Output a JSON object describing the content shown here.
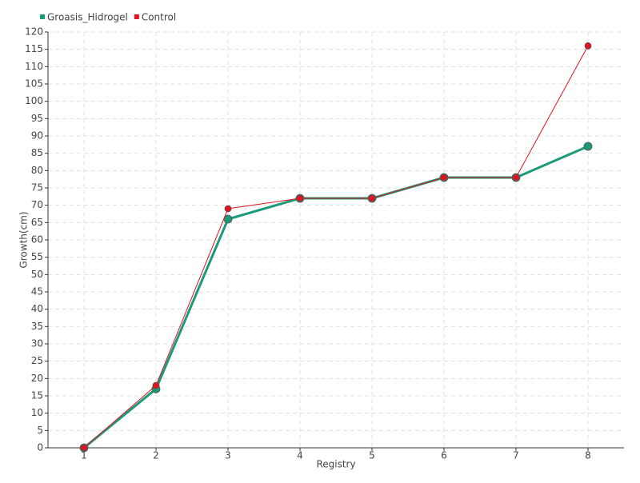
{
  "chart_data": {
    "type": "line",
    "x_label": "Registry",
    "y_label": "Growth(cm)",
    "x": [
      1,
      2,
      3,
      4,
      5,
      6,
      7,
      8
    ],
    "series": [
      {
        "name": "Groasis_Hidrogel",
        "color": "#1a9a7a",
        "values": [
          0,
          17,
          66,
          72,
          72,
          78,
          78,
          87
        ]
      },
      {
        "name": "Control",
        "color": "#e0141e",
        "values": [
          0,
          18,
          69,
          72,
          72,
          78,
          78,
          116
        ]
      }
    ],
    "xlim": [
      0.5,
      8.5
    ],
    "xticks": [
      1,
      2,
      3,
      4,
      5,
      6,
      7,
      8
    ],
    "ylim": [
      0,
      120
    ],
    "yticks": [
      0,
      5,
      10,
      15,
      20,
      25,
      30,
      35,
      40,
      45,
      50,
      55,
      60,
      65,
      70,
      75,
      80,
      85,
      90,
      95,
      100,
      105,
      110,
      115,
      120
    ],
    "grid": true,
    "legend": "top-left"
  }
}
